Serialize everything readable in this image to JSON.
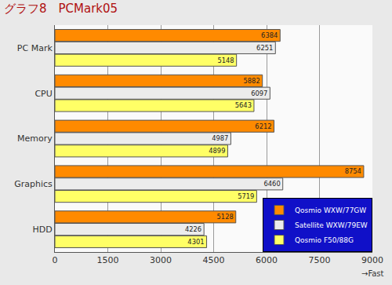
{
  "chart_data": {
    "type": "bar",
    "title": "グラフ8　PCMark05",
    "orientation": "horizontal",
    "categories": [
      "PC Mark",
      "CPU",
      "Memory",
      "Graphics",
      "HDD"
    ],
    "series": [
      {
        "name": "Qosmio WXW/77GW",
        "color": "#ff8a00",
        "values": [
          6384,
          5882,
          6212,
          8754,
          5128
        ]
      },
      {
        "name": "Satellite WXW/79EW",
        "color": "#ececec",
        "values": [
          6251,
          6097,
          4987,
          6460,
          4226
        ]
      },
      {
        "name": "Qosmio F50/88G",
        "color": "#ffff66",
        "values": [
          5148,
          5643,
          4899,
          5719,
          4301
        ]
      }
    ],
    "xlim": [
      0,
      9000
    ],
    "xticks": [
      0,
      1500,
      3000,
      4500,
      6000,
      7500,
      9000
    ],
    "grid": true,
    "legend": "bottom right",
    "data_labels": true,
    "annotations": [
      "→Fast"
    ]
  }
}
